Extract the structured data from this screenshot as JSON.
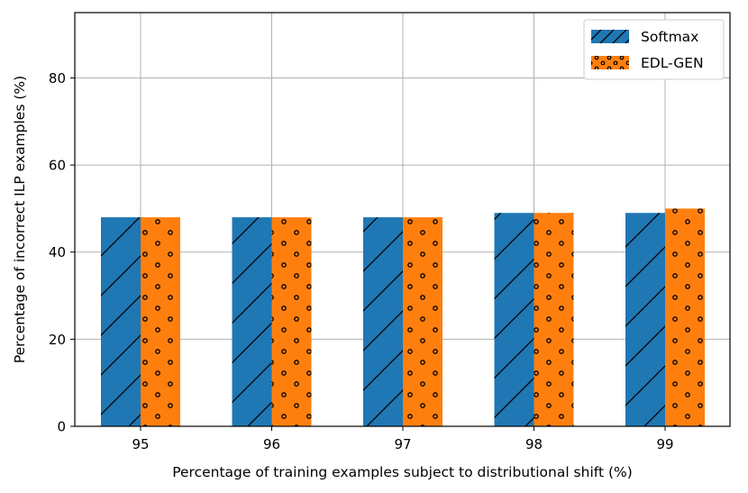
{
  "chart_data": {
    "type": "bar",
    "title": "",
    "xlabel": "Percentage of training examples subject to distributional shift (%)",
    "ylabel": "Percentage of incorrect ILP examples (%)",
    "categories": [
      "95",
      "96",
      "97",
      "98",
      "99"
    ],
    "series": [
      {
        "name": "Softmax",
        "values": [
          48,
          48,
          48,
          49,
          49
        ],
        "color": "#1f77b4",
        "hatch": "diagonal"
      },
      {
        "name": "EDL-GEN",
        "values": [
          48,
          48,
          48,
          49,
          50
        ],
        "color": "#ff7f0e",
        "hatch": "dots"
      }
    ],
    "ylim": [
      0,
      95
    ],
    "yticks": [
      0,
      20,
      40,
      60,
      80
    ],
    "grid": true,
    "legend": "top-right"
  }
}
